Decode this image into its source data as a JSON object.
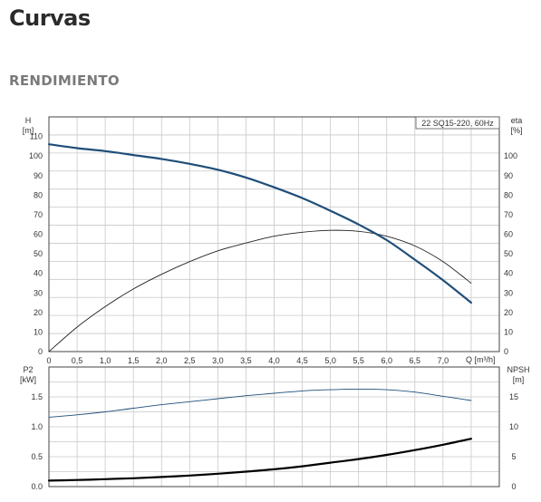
{
  "page": {
    "title": "Curvas",
    "section": "RENDIMIENTO"
  },
  "chart_data": [
    {
      "type": "line",
      "panel": "performance",
      "legend_box": "22 SQ15-220, 60Hz",
      "xlabel": "Q [m³/h]",
      "x_ticks": [
        "0",
        "0,5",
        "1,0",
        "1,5",
        "2,0",
        "2,5",
        "3,0",
        "3,5",
        "4,0",
        "4,5",
        "5,0",
        "5,5",
        "6,0",
        "6,5",
        "7,0"
      ],
      "xlim": [
        0,
        8
      ],
      "y_left": {
        "label_line1": "H",
        "label_line2": "[m]",
        "lim": [
          0,
          120
        ],
        "ticks": [
          0,
          10,
          20,
          30,
          40,
          50,
          60,
          70,
          80,
          90,
          100,
          110
        ]
      },
      "y_right": {
        "label_line1": "eta",
        "label_line2": "[%]",
        "lim": [
          0,
          120
        ],
        "ticks": [
          0,
          10,
          20,
          30,
          40,
          50,
          60,
          70,
          80,
          90,
          100
        ]
      },
      "series": [
        {
          "axis": "left",
          "color": "#1f4e79",
          "x": [
            0,
            0.5,
            1.0,
            1.5,
            2.0,
            2.5,
            3.0,
            3.5,
            4.0,
            4.5,
            5.0,
            5.5,
            6.0,
            6.5,
            7.0,
            7.5
          ],
          "y": [
            106,
            104,
            102.5,
            100.5,
            98.5,
            96,
            93,
            89,
            84,
            78.5,
            72,
            65,
            57,
            47,
            36.5,
            25
          ]
        },
        {
          "axis": "right",
          "color": "#222222",
          "x": [
            0,
            0.5,
            1.0,
            1.5,
            2.0,
            2.5,
            3.0,
            3.5,
            4.0,
            4.5,
            5.0,
            5.5,
            6.0,
            6.5,
            7.0,
            7.5
          ],
          "y": [
            0,
            12.5,
            23,
            32,
            39.5,
            46,
            51.5,
            55.5,
            59,
            61,
            62,
            61.5,
            59,
            54,
            46,
            35
          ]
        }
      ]
    },
    {
      "type": "line",
      "panel": "power-npsh",
      "xlim": [
        0,
        8
      ],
      "y_left": {
        "label_line1": "P2",
        "label_line2": "[kW]",
        "lim": [
          0,
          2
        ],
        "ticks": [
          "0.0",
          "0.5",
          "1.0",
          "1.5"
        ]
      },
      "y_right": {
        "label_line1": "NPSH",
        "label_line2": "[m]",
        "lim": [
          0,
          20
        ],
        "ticks": [
          0,
          5,
          10,
          15
        ]
      },
      "series": [
        {
          "axis": "right",
          "color": "#1f4e79",
          "x": [
            0,
            0.5,
            1.0,
            1.5,
            2.0,
            2.5,
            3.0,
            3.5,
            4.0,
            4.5,
            5.0,
            5.5,
            6.0,
            6.5,
            7.0,
            7.5
          ],
          "y": [
            11.6,
            12.0,
            12.5,
            13.1,
            13.7,
            14.2,
            14.7,
            15.2,
            15.6,
            16.0,
            16.2,
            16.3,
            16.2,
            15.8,
            15.1,
            14.4
          ]
        },
        {
          "axis": "left",
          "color": "#000000",
          "x": [
            0,
            0.5,
            1.0,
            1.5,
            2.0,
            2.5,
            3.0,
            3.5,
            4.0,
            4.5,
            5.0,
            5.5,
            6.0,
            6.5,
            7.0,
            7.5
          ],
          "y": [
            0.1,
            0.11,
            0.125,
            0.14,
            0.16,
            0.185,
            0.215,
            0.25,
            0.29,
            0.34,
            0.4,
            0.46,
            0.53,
            0.61,
            0.7,
            0.8
          ]
        }
      ]
    }
  ]
}
